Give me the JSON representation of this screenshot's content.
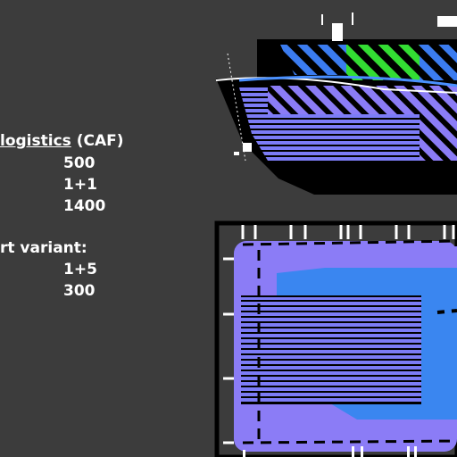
{
  "spec": {
    "logistics_title": "logistics",
    "logistics_suffix": " (CAF)",
    "logistics_values": [
      "500",
      "1+1",
      "1400"
    ],
    "variant_title": "rt variant:",
    "variant_values": [
      "1+5",
      "300"
    ]
  },
  "colors": {
    "background": "#3c3c3c",
    "hull_black": "#000000",
    "zone_blue": "#3b82f6",
    "zone_violet": "#8b7cf6",
    "zone_green": "#33dd33",
    "zone_light_blue": "#4a90ff",
    "outline_white": "#ffffff"
  },
  "icons": {
    "ship_side_view": "ship-side-view-icon",
    "ship_top_view": "ship-top-view-icon"
  }
}
